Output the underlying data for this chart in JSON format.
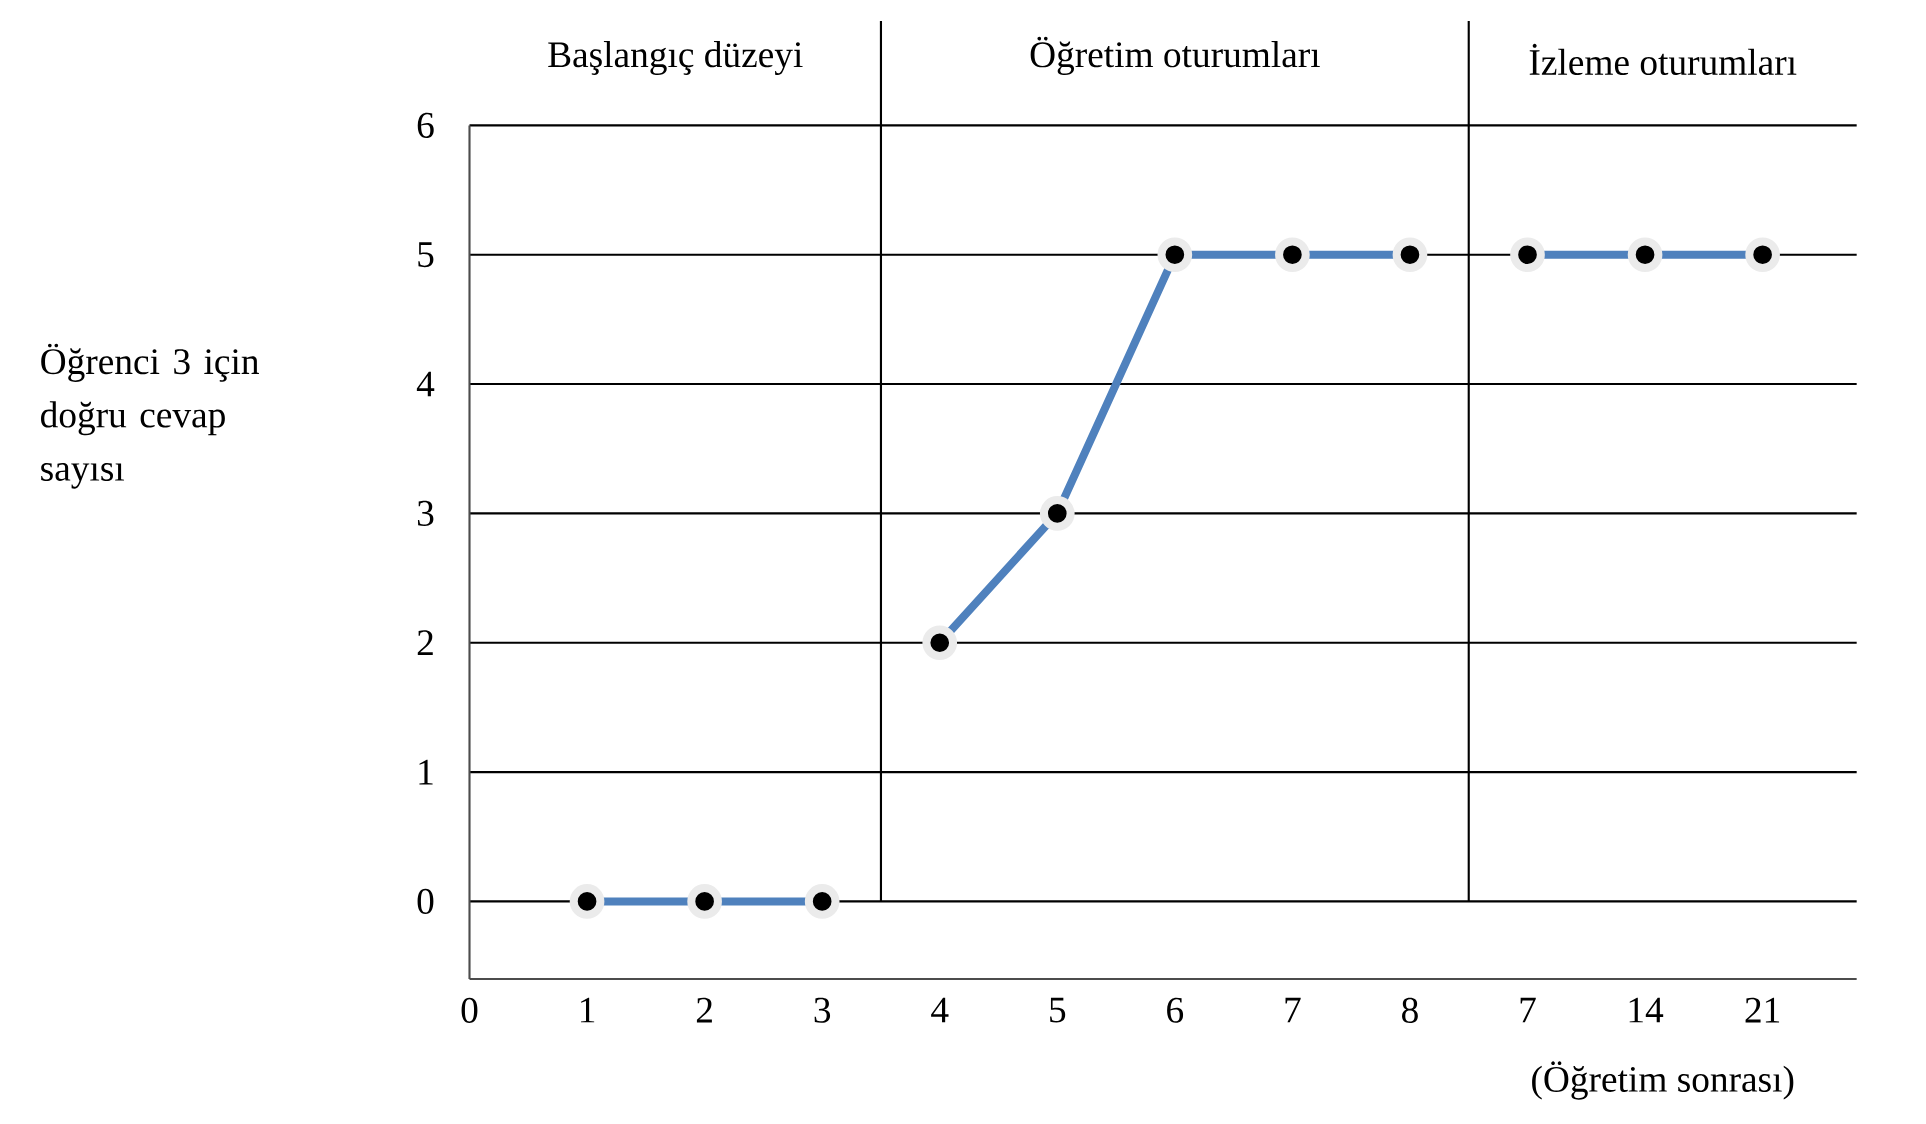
{
  "chart_data": {
    "type": "line",
    "ylabel": "Öğrenci 3 için doğru cevap sayısı",
    "categories": [
      "0",
      "1",
      "2",
      "3",
      "4",
      "5",
      "6",
      "7",
      "8",
      "7",
      "14",
      "21"
    ],
    "series": [
      {
        "color": "#4f81bd",
        "values": [
          null,
          0,
          0,
          0,
          null,
          null,
          null,
          null,
          null,
          null,
          null,
          null
        ]
      },
      {
        "color": "#4f81bd",
        "values": [
          null,
          null,
          null,
          null,
          2,
          3,
          5,
          5,
          5,
          null,
          null,
          null
        ]
      },
      {
        "color": "#4f81bd",
        "values": [
          null,
          null,
          null,
          null,
          null,
          null,
          null,
          null,
          null,
          5,
          5,
          5
        ]
      }
    ],
    "ylim": [
      -0.6,
      6
    ],
    "yticks": [
      0,
      1,
      2,
      3,
      4,
      5,
      6
    ],
    "grid": "y",
    "marker": "circle",
    "line_style": "solid",
    "annotations": [
      "Başlangıç düzeyi",
      "Öğretim oturumları",
      "İzleme oturumları",
      "(Öğretim sonrası)"
    ]
  }
}
